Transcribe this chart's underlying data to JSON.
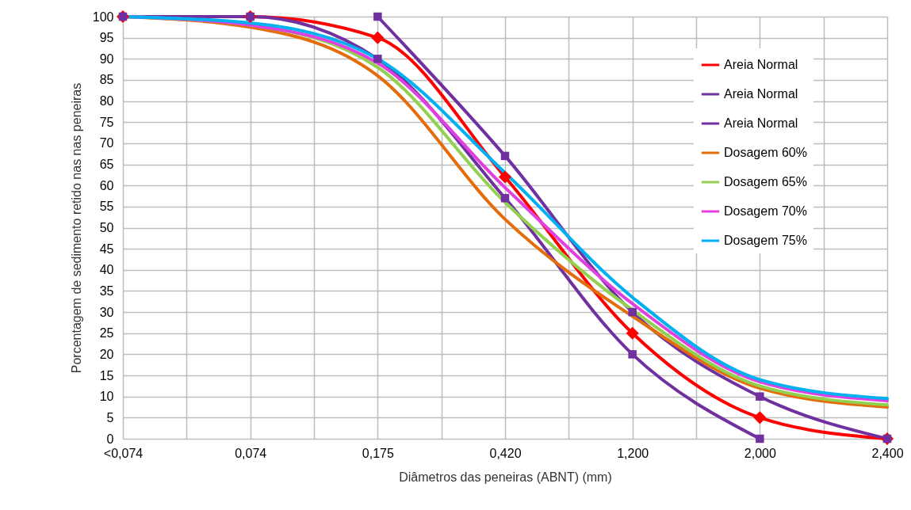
{
  "chart_data": {
    "type": "line",
    "xlabel": "Diâmetros das peneiras (ABNT) (mm)",
    "ylabel": "Porcentagem de sedimento retido nas nas peneiras",
    "categories": [
      "<0,074",
      "0,074",
      "0,175",
      "0,420",
      "1,200",
      "2,000",
      "2,400"
    ],
    "ylim": [
      0,
      100
    ],
    "yticks": [
      0,
      5,
      10,
      15,
      20,
      25,
      30,
      35,
      40,
      45,
      50,
      55,
      60,
      65,
      70,
      75,
      80,
      85,
      90,
      95,
      100
    ],
    "grid": true,
    "legend": "top right",
    "series": [
      {
        "name": "Areia Normal",
        "color": "#ff0000",
        "marker": "diamond",
        "values": [
          100,
          100,
          95,
          62,
          25,
          5,
          0
        ]
      },
      {
        "name": "Areia Normal",
        "color": "#7030a0",
        "marker": "square",
        "values": [
          null,
          null,
          100,
          67,
          30,
          10,
          0
        ]
      },
      {
        "name": "Areia Normal",
        "color": "#7030a0",
        "marker": "square",
        "values": [
          100,
          100,
          90,
          57,
          20,
          0,
          null
        ]
      },
      {
        "name": "Dosagem 60%",
        "color": "#e46c0a",
        "values": [
          100,
          97.5,
          86,
          52,
          29,
          12,
          7.5
        ]
      },
      {
        "name": "Dosagem 65%",
        "color": "#92d050",
        "values": [
          100,
          98,
          88,
          56,
          30.5,
          12.5,
          8
        ]
      },
      {
        "name": "Dosagem 70%",
        "color": "#e040e0",
        "values": [
          100,
          98,
          89,
          59.5,
          32,
          13.5,
          9
        ]
      },
      {
        "name": "Dosagem 75%",
        "color": "#00b0f0",
        "values": [
          100,
          98.5,
          90,
          63,
          33.5,
          14,
          9.5
        ]
      }
    ]
  }
}
